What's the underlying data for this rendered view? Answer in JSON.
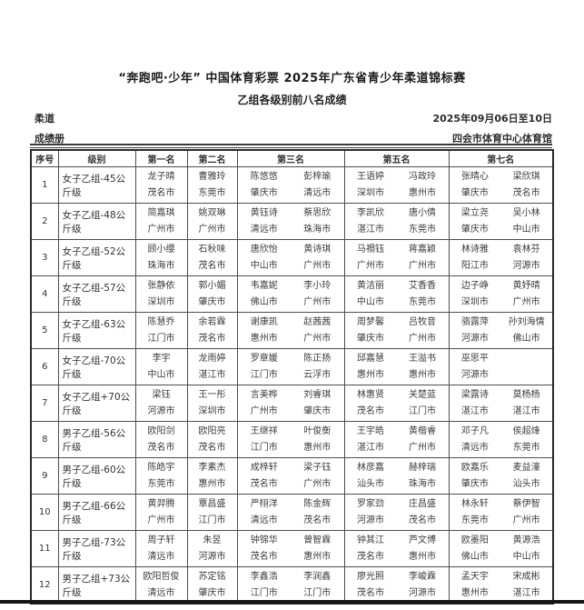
{
  "page": {
    "title": "“奔跑吧·少年” 中国体育彩票 2025年广东省青少年柔道锦标赛",
    "subtitle": "乙组各级别前八名成绩",
    "sport": "柔道",
    "doc_type": "成绩册",
    "date_range": "2025年09月06日至10日",
    "venue": "四会市体育中心体育馆"
  },
  "table": {
    "headers": {
      "no": "序号",
      "category": "级别",
      "first": "第一名",
      "second": "第二名",
      "third": "第三名",
      "fifth": "第五名",
      "seventh": "第七名"
    },
    "rows": [
      {
        "no": "1",
        "category": "女子乙组-45公斤级",
        "first": {
          "name": "龙子晴",
          "city": "茂名市"
        },
        "second": {
          "name": "曹雅玲",
          "city": "东莞市"
        },
        "third": [
          {
            "name": "陈悠悠",
            "city": "肇庆市"
          },
          {
            "name": "彭梓瑜",
            "city": "清远市"
          }
        ],
        "fifth": [
          {
            "name": "王语婷",
            "city": "深圳市"
          },
          {
            "name": "冯政玲",
            "city": "惠州市"
          }
        ],
        "seventh": [
          {
            "name": "张晴心",
            "city": "肇庆市"
          },
          {
            "name": "梁欣琪",
            "city": "茂名市"
          }
        ]
      },
      {
        "no": "2",
        "category": "女子乙组-48公斤级",
        "first": {
          "name": "简嘉琪",
          "city": "广州市"
        },
        "second": {
          "name": "姚双琳",
          "city": "广州市"
        },
        "third": [
          {
            "name": "黄钰诗",
            "city": "清远市"
          },
          {
            "name": "蔡思欣",
            "city": "珠海市"
          }
        ],
        "fifth": [
          {
            "name": "李凯欣",
            "city": "湛江市"
          },
          {
            "name": "唐小倩",
            "city": "东莞市"
          }
        ],
        "seventh": [
          {
            "name": "梁立尧",
            "city": "肇庆市"
          },
          {
            "name": "吴小林",
            "city": "中山市"
          }
        ]
      },
      {
        "no": "3",
        "category": "女子乙组-52公斤级",
        "first": {
          "name": "顾小缨",
          "city": "珠海市"
        },
        "second": {
          "name": "石秋味",
          "city": "茂名市"
        },
        "third": [
          {
            "name": "唐欣怡",
            "city": "中山市"
          },
          {
            "name": "黄诗琪",
            "city": "广州市"
          }
        ],
        "fifth": [
          {
            "name": "马禤钰",
            "city": "广州市"
          },
          {
            "name": "蒋嘉颖",
            "city": "广州市"
          }
        ],
        "seventh": [
          {
            "name": "林诗雅",
            "city": "阳江市"
          },
          {
            "name": "袁林芬",
            "city": "河源市"
          }
        ]
      },
      {
        "no": "4",
        "category": "女子乙组-57公斤级",
        "first": {
          "name": "张静依",
          "city": "深圳市"
        },
        "second": {
          "name": "郭小媚",
          "city": "肇庆市"
        },
        "third": [
          {
            "name": "韦嘉妮",
            "city": "佛山市"
          },
          {
            "name": "李小玲",
            "city": "广州市"
          }
        ],
        "fifth": [
          {
            "name": "黄洁丽",
            "city": "中山市"
          },
          {
            "name": "艾香香",
            "city": "东莞市"
          }
        ],
        "seventh": [
          {
            "name": "边子峥",
            "city": "深圳市"
          },
          {
            "name": "黄妤晴",
            "city": "广州市"
          }
        ]
      },
      {
        "no": "5",
        "category": "女子乙组-63公斤级",
        "first": {
          "name": "陈慧乔",
          "city": "江门市"
        },
        "second": {
          "name": "余若霖",
          "city": "茂名市"
        },
        "third": [
          {
            "name": "谢康凯",
            "city": "惠州市"
          },
          {
            "name": "赵茜茜",
            "city": "广州市"
          }
        ],
        "fifth": [
          {
            "name": "周梦馨",
            "city": "肇庆市"
          },
          {
            "name": "吕牧音",
            "city": "广州市"
          }
        ],
        "seventh": [
          {
            "name": "骆露萍",
            "city": "河源市"
          },
          {
            "name": "孙刘海情",
            "city": "佛山市"
          }
        ]
      },
      {
        "no": "6",
        "category": "女子乙组-70公斤级",
        "first": {
          "name": "李宇",
          "city": "中山市"
        },
        "second": {
          "name": "龙雨婷",
          "city": "湛江市"
        },
        "third": [
          {
            "name": "罗章媛",
            "city": "江门市"
          },
          {
            "name": "陈正扬",
            "city": "云浮市"
          }
        ],
        "fifth": [
          {
            "name": "邱嘉慧",
            "city": "惠州市"
          },
          {
            "name": "王溢书",
            "city": "惠州市"
          }
        ],
        "seventh": [
          {
            "name": "巫思平",
            "city": "河源市"
          },
          {
            "name": "",
            "city": ""
          }
        ]
      },
      {
        "no": "7",
        "category": "女子乙组+70公斤级",
        "first": {
          "name": "梁钰",
          "city": "河源市"
        },
        "second": {
          "name": "王一彤",
          "city": "深圳市"
        },
        "third": [
          {
            "name": "言美桦",
            "city": "广州市"
          },
          {
            "name": "刘睿琪",
            "city": "肇庆市"
          }
        ],
        "fifth": [
          {
            "name": "林惠贤",
            "city": "茂名市"
          },
          {
            "name": "关楚蓝",
            "city": "江门市"
          }
        ],
        "seventh": [
          {
            "name": "梁露诗",
            "city": "湛江市"
          },
          {
            "name": "莫杨杨",
            "city": "湛江市"
          }
        ]
      },
      {
        "no": "8",
        "category": "男子乙组-56公斤级",
        "first": {
          "name": "欧阳剑",
          "city": "茂名市"
        },
        "second": {
          "name": "欧阳亮",
          "city": "茂名市"
        },
        "third": [
          {
            "name": "王继祥",
            "city": "江门市"
          },
          {
            "name": "叶俊衡",
            "city": "惠州市"
          }
        ],
        "fifth": [
          {
            "name": "王宇皓",
            "city": "湛江市"
          },
          {
            "name": "黄楷睿",
            "city": "广州市"
          }
        ],
        "seventh": [
          {
            "name": "邓子凡",
            "city": "清远市"
          },
          {
            "name": "侯超烽",
            "city": "东莞市"
          }
        ]
      },
      {
        "no": "9",
        "category": "男子乙组-60公斤级",
        "first": {
          "name": "陈皓宇",
          "city": "东莞市"
        },
        "second": {
          "name": "李素杰",
          "city": "惠州市"
        },
        "third": [
          {
            "name": "成梓轩",
            "city": "茂名市"
          },
          {
            "name": "梁子钰",
            "city": "广州市"
          }
        ],
        "fifth": [
          {
            "name": "林彦嘉",
            "city": "汕头市"
          },
          {
            "name": "赫梓瑞",
            "city": "珠海市"
          }
        ],
        "seventh": [
          {
            "name": "欧嘉乐",
            "city": "肇庆市"
          },
          {
            "name": "麦益濠",
            "city": "汕头市"
          }
        ]
      },
      {
        "no": "10",
        "category": "男子乙组-66公斤级",
        "first": {
          "name": "黄羿腾",
          "city": "广州市"
        },
        "second": {
          "name": "覃昌盛",
          "city": "江门市"
        },
        "third": [
          {
            "name": "严栩洋",
            "city": "清远市"
          },
          {
            "name": "陈金辉",
            "city": "茂名市"
          }
        ],
        "fifth": [
          {
            "name": "罗家劲",
            "city": "河源市"
          },
          {
            "name": "庄昌盛",
            "city": "茂名市"
          }
        ],
        "seventh": [
          {
            "name": "林永轩",
            "city": "东莞市"
          },
          {
            "name": "蔡伊智",
            "city": "广州市"
          }
        ]
      },
      {
        "no": "11",
        "category": "男子乙组-73公斤级",
        "first": {
          "name": "周子轩",
          "city": "清远市"
        },
        "second": {
          "name": "朱昱",
          "city": "河源市"
        },
        "third": [
          {
            "name": "钟锦华",
            "city": "茂名市"
          },
          {
            "name": "曾智霖",
            "city": "惠州市"
          }
        ],
        "fifth": [
          {
            "name": "钟其江",
            "city": "茂名市"
          },
          {
            "name": "芦文博",
            "city": "惠州市"
          }
        ],
        "seventh": [
          {
            "name": "欧墨阳",
            "city": "佛山市"
          },
          {
            "name": "黄源浩",
            "city": "中山市"
          }
        ]
      },
      {
        "no": "12",
        "category": "男子乙组+73公斤级",
        "first": {
          "name": "欧阳哲俊",
          "city": "清远市"
        },
        "second": {
          "name": "苏定铭",
          "city": "肇庆市"
        },
        "third": [
          {
            "name": "李鑫浩",
            "city": "江门市"
          },
          {
            "name": "李润鑫",
            "city": "江门市"
          }
        ],
        "fifth": [
          {
            "name": "廖光照",
            "city": "茂名市"
          },
          {
            "name": "李峻霖",
            "city": "河源市"
          }
        ],
        "seventh": [
          {
            "name": "孟天宇",
            "city": "惠州市"
          },
          {
            "name": "宋成彬",
            "city": "湛江市"
          }
        ]
      }
    ]
  }
}
